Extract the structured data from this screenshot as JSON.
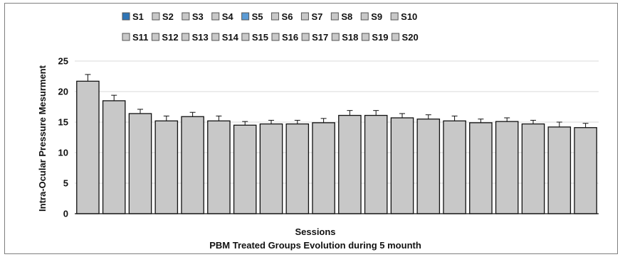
{
  "chart_data": {
    "type": "bar",
    "categories": [
      "S1",
      "S2",
      "S3",
      "S4",
      "S5",
      "S6",
      "S7",
      "S8",
      "S9",
      "S10",
      "S11",
      "S12",
      "S13",
      "S14",
      "S15",
      "S16",
      "S17",
      "S18",
      "S19",
      "S20"
    ],
    "series": [
      {
        "values": [
          21.7,
          18.5,
          16.4,
          15.2,
          15.9,
          15.2,
          14.5,
          14.7,
          14.7,
          14.9,
          16.1,
          16.1,
          15.7,
          15.5,
          15.2,
          14.9,
          15.1,
          14.7,
          14.2,
          14.1
        ],
        "errors": [
          1.1,
          0.9,
          0.7,
          0.8,
          0.7,
          0.8,
          0.6,
          0.6,
          0.6,
          0.7,
          0.8,
          0.8,
          0.7,
          0.7,
          0.8,
          0.6,
          0.6,
          0.6,
          0.8,
          0.7
        ]
      }
    ],
    "legend": {
      "entries": [
        "S1",
        "S2",
        "S3",
        "S4",
        "S5",
        "S6",
        "S7",
        "S8",
        "S9",
        "S10",
        "S11",
        "S12",
        "S13",
        "S14",
        "S15",
        "S16",
        "S17",
        "S18",
        "S19",
        "S20"
      ],
      "placement": "top",
      "swatch_colors": [
        "#2e75b6",
        "#c8c8c8",
        "#c8c8c8",
        "#c8c8c8",
        "#5b9bd5",
        "#c8c8c8",
        "#c8c8c8",
        "#c8c8c8",
        "#c8c8c8",
        "#c8c8c8",
        "#c8c8c8",
        "#c8c8c8",
        "#c8c8c8",
        "#c8c8c8",
        "#c8c8c8",
        "#c8c8c8",
        "#c8c8c8",
        "#c8c8c8",
        "#c8c8c8",
        "#c8c8c8"
      ]
    },
    "title": "PBM Treated Groups Evolution during 5 mounth",
    "xlabel": "Sessions",
    "ylabel": "Intra-Ocular Pressure Mesurment",
    "ylim": [
      0,
      25
    ],
    "yticks": [
      0,
      5,
      10,
      15,
      20,
      25
    ],
    "grid": true,
    "colors": {
      "bar_fill": "#c8c8c8",
      "bar_stroke": "#111111",
      "grid": "#d9d9d9"
    }
  }
}
